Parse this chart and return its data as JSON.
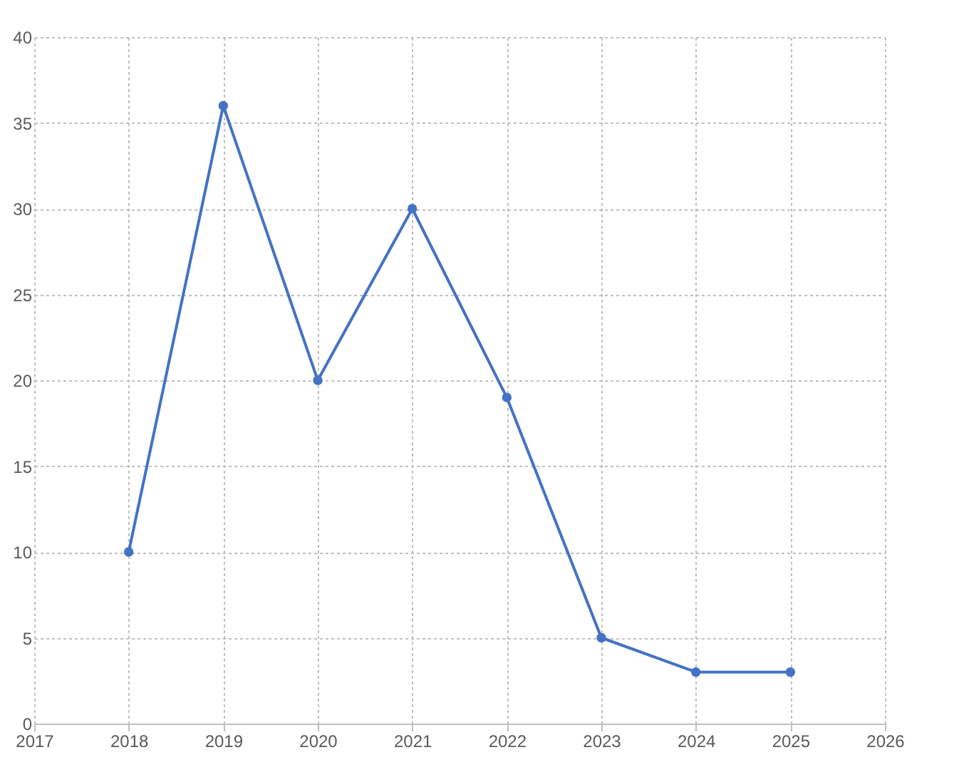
{
  "chart_data": {
    "type": "line",
    "x": [
      2018,
      2019,
      2020,
      2021,
      2022,
      2023,
      2024,
      2025
    ],
    "series": [
      {
        "color": "#4472c4",
        "values": [
          10,
          36,
          20,
          30,
          19,
          5,
          3,
          3
        ]
      }
    ],
    "xlim": [
      2017,
      2026
    ],
    "xticks": [
      2017,
      2018,
      2019,
      2020,
      2021,
      2022,
      2023,
      2024,
      2025,
      2026
    ],
    "ylim": [
      0,
      40
    ],
    "yticks": [
      0,
      5,
      10,
      15,
      20,
      25,
      30,
      35,
      40
    ],
    "grid": true,
    "marker": "circle",
    "line_style": "solid"
  }
}
